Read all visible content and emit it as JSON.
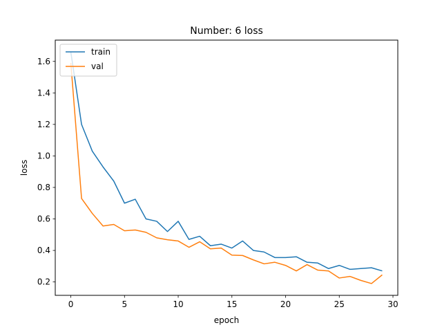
{
  "chart_data": {
    "type": "line",
    "title": "Number: 6 loss",
    "xlabel": "epoch",
    "ylabel": "loss",
    "xlim": [
      -1.45,
      30.45
    ],
    "ylim": [
      0.115,
      1.735
    ],
    "xticks": [
      0,
      5,
      10,
      15,
      20,
      25,
      30
    ],
    "yticks": [
      0.2,
      0.4,
      0.6,
      0.8,
      1.0,
      1.2,
      1.4,
      1.6
    ],
    "grid": false,
    "legend_position": "upper-left",
    "x": [
      0,
      1,
      2,
      3,
      4,
      5,
      6,
      7,
      8,
      9,
      10,
      11,
      12,
      13,
      14,
      15,
      16,
      17,
      18,
      19,
      20,
      21,
      22,
      23,
      24,
      25,
      26,
      27,
      28,
      29
    ],
    "series": [
      {
        "name": "train",
        "color": "#1f77b4",
        "values": [
          1.66,
          1.2,
          1.03,
          0.93,
          0.84,
          0.7,
          0.725,
          0.6,
          0.585,
          0.52,
          0.585,
          0.47,
          0.49,
          0.43,
          0.44,
          0.415,
          0.46,
          0.4,
          0.39,
          0.355,
          0.355,
          0.36,
          0.325,
          0.32,
          0.285,
          0.305,
          0.28,
          0.285,
          0.29,
          0.27
        ]
      },
      {
        "name": "val",
        "color": "#ff7f0e",
        "values": [
          1.59,
          0.73,
          0.635,
          0.555,
          0.565,
          0.525,
          0.53,
          0.515,
          0.48,
          0.468,
          0.46,
          0.42,
          0.455,
          0.41,
          0.415,
          0.37,
          0.368,
          0.34,
          0.315,
          0.325,
          0.305,
          0.27,
          0.31,
          0.275,
          0.27,
          0.225,
          0.235,
          0.21,
          0.19,
          0.245
        ]
      }
    ]
  }
}
